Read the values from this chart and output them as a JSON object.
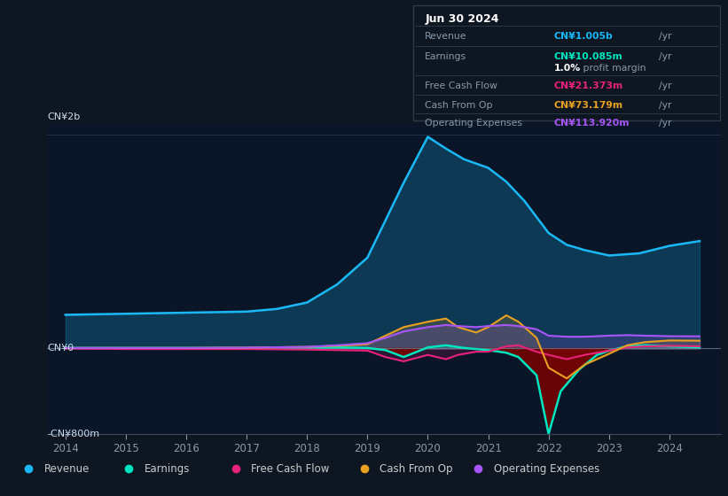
{
  "background_color": "#0e1621",
  "plot_bg_color": "#0a1628",
  "ylim": [
    -800,
    2100
  ],
  "xlim_start": 2013.7,
  "xlim_end": 2024.85,
  "ytick_labels": [
    "-CN¥800m",
    "CN¥0",
    "CN¥2b"
  ],
  "ytick_vals": [
    -800,
    0,
    2000
  ],
  "xticks": [
    2014,
    2015,
    2016,
    2017,
    2018,
    2019,
    2020,
    2021,
    2022,
    2023,
    2024
  ],
  "revenue_color": "#1ab8f5",
  "earnings_color": "#00e5c0",
  "fcf_color": "#e8217a",
  "cashfromop_color": "#e8a020",
  "opex_color": "#a855f7",
  "info_box": {
    "date": "Jun 30 2024",
    "revenue_label": "Revenue",
    "revenue_value": "CN¥1.005b",
    "revenue_color": "#1ab8f5",
    "earnings_label": "Earnings",
    "earnings_value": "CN¥10.085m",
    "earnings_color": "#00e5c0",
    "margin_pct": "1.0%",
    "margin_label": " profit margin",
    "fcf_label": "Free Cash Flow",
    "fcf_value": "CN¥21.373m",
    "fcf_color": "#e8217a",
    "cashop_label": "Cash From Op",
    "cashop_value": "CN¥73.179m",
    "cashop_color": "#e8a020",
    "opex_label": "Operating Expenses",
    "opex_value": "CN¥113.920m",
    "opex_color": "#a855f7"
  },
  "legend": [
    {
      "label": "Revenue",
      "color": "#1ab8f5"
    },
    {
      "label": "Earnings",
      "color": "#00e5c0"
    },
    {
      "label": "Free Cash Flow",
      "color": "#e8217a"
    },
    {
      "label": "Cash From Op",
      "color": "#e8a020"
    },
    {
      "label": "Operating Expenses",
      "color": "#a855f7"
    }
  ],
  "revenue_x": [
    2014.0,
    2014.5,
    2015.0,
    2015.5,
    2016.0,
    2016.5,
    2017.0,
    2017.5,
    2018.0,
    2018.5,
    2019.0,
    2019.3,
    2019.6,
    2020.0,
    2020.3,
    2020.6,
    2021.0,
    2021.3,
    2021.6,
    2022.0,
    2022.3,
    2022.6,
    2023.0,
    2023.5,
    2024.0,
    2024.5
  ],
  "revenue_y": [
    315,
    320,
    325,
    330,
    335,
    340,
    345,
    370,
    430,
    600,
    850,
    1200,
    1550,
    1980,
    1870,
    1770,
    1690,
    1560,
    1380,
    1080,
    970,
    920,
    870,
    890,
    960,
    1005
  ],
  "earnings_x": [
    2014.0,
    2015.0,
    2016.0,
    2017.0,
    2018.0,
    2018.5,
    2019.0,
    2019.3,
    2019.6,
    2020.0,
    2020.3,
    2020.6,
    2021.0,
    2021.3,
    2021.5,
    2021.8,
    2022.0,
    2022.2,
    2022.5,
    2022.8,
    2023.0,
    2023.3,
    2023.6,
    2024.0,
    2024.5
  ],
  "earnings_y": [
    5,
    5,
    5,
    5,
    8,
    10,
    5,
    -15,
    -80,
    10,
    30,
    5,
    -15,
    -40,
    -80,
    -250,
    -800,
    -400,
    -200,
    -60,
    -20,
    20,
    30,
    20,
    10
  ],
  "fcf_x": [
    2014.0,
    2015.0,
    2016.0,
    2017.0,
    2018.0,
    2018.5,
    2019.0,
    2019.3,
    2019.6,
    2020.0,
    2020.3,
    2020.5,
    2020.8,
    2021.0,
    2021.3,
    2021.5,
    2021.8,
    2022.0,
    2022.3,
    2022.6,
    2023.0,
    2023.3,
    2023.6,
    2024.0,
    2024.5
  ],
  "fcf_y": [
    0,
    -5,
    -5,
    -5,
    -10,
    -15,
    -20,
    -80,
    -120,
    -60,
    -100,
    -60,
    -30,
    -30,
    20,
    30,
    -30,
    -60,
    -100,
    -60,
    -20,
    10,
    20,
    25,
    21
  ],
  "cashop_x": [
    2014.0,
    2015.0,
    2016.0,
    2017.0,
    2018.0,
    2018.5,
    2019.0,
    2019.3,
    2019.6,
    2020.0,
    2020.3,
    2020.5,
    2020.8,
    2021.0,
    2021.3,
    2021.5,
    2021.8,
    2022.0,
    2022.3,
    2022.6,
    2023.0,
    2023.3,
    2023.6,
    2024.0,
    2024.5
  ],
  "cashop_y": [
    5,
    5,
    5,
    8,
    15,
    25,
    40,
    120,
    200,
    250,
    280,
    200,
    150,
    200,
    310,
    250,
    100,
    -180,
    -280,
    -150,
    -50,
    30,
    60,
    75,
    73
  ],
  "opex_x": [
    2014.0,
    2015.0,
    2016.0,
    2017.0,
    2018.0,
    2018.5,
    2019.0,
    2019.3,
    2019.6,
    2020.0,
    2020.3,
    2020.5,
    2020.8,
    2021.0,
    2021.3,
    2021.5,
    2021.8,
    2022.0,
    2022.3,
    2022.6,
    2023.0,
    2023.3,
    2023.6,
    2024.0,
    2024.5
  ],
  "opex_y": [
    5,
    5,
    5,
    8,
    15,
    30,
    50,
    100,
    160,
    200,
    220,
    210,
    200,
    210,
    220,
    210,
    180,
    120,
    110,
    110,
    120,
    125,
    120,
    115,
    114
  ]
}
